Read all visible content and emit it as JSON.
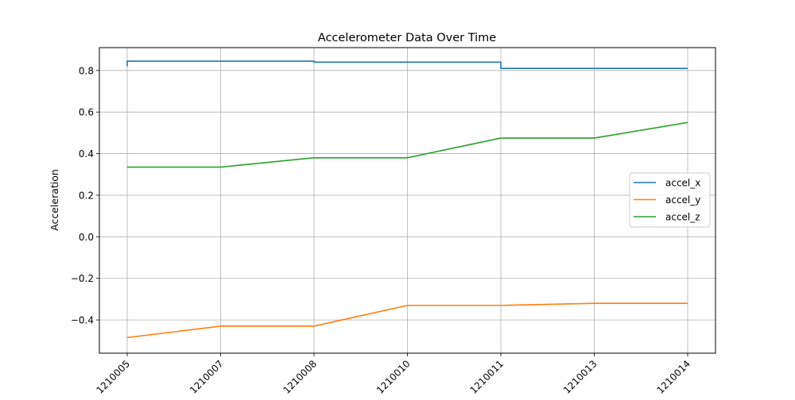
{
  "chart_data": {
    "type": "line",
    "title": "Accelerometer Data Over Time",
    "xlabel": "",
    "ylabel": "Acceleration",
    "categories": [
      "1210005",
      "1210007",
      "1210008",
      "1210010",
      "1210011",
      "1210013",
      "1210014"
    ],
    "tick_labels_shown": [
      "1210005",
      "1210007",
      "1210008",
      "1210010",
      "1210011",
      "1210013",
      "1210014"
    ],
    "x_tick_rotation_deg": 45,
    "yticks": [
      -0.4,
      -0.2,
      0.0,
      0.2,
      0.4,
      0.6,
      0.8
    ],
    "ytick_labels": [
      "−0.4",
      "−0.2",
      "0.0",
      "0.2",
      "0.4",
      "0.6",
      "0.8"
    ],
    "ylim": [
      -0.56,
      0.91
    ],
    "grid": true,
    "legend_position": "center-right",
    "series": [
      {
        "name": "accel_x",
        "color": "#1f77b4",
        "step": true,
        "points": [
          [
            0,
            0.82
          ],
          [
            0,
            0.845
          ],
          [
            2,
            0.845
          ],
          [
            2,
            0.84
          ],
          [
            4,
            0.84
          ],
          [
            4,
            0.81
          ],
          [
            6,
            0.81
          ]
        ]
      },
      {
        "name": "accel_y",
        "color": "#ff7f0e",
        "step": false,
        "points": [
          [
            0,
            -0.485
          ],
          [
            1,
            -0.43
          ],
          [
            2,
            -0.43
          ],
          [
            3,
            -0.33
          ],
          [
            4,
            -0.33
          ],
          [
            5,
            -0.32
          ],
          [
            6,
            -0.32
          ]
        ]
      },
      {
        "name": "accel_z",
        "color": "#2ca02c",
        "step": false,
        "points": [
          [
            0,
            0.335
          ],
          [
            1,
            0.335
          ],
          [
            2,
            0.38
          ],
          [
            3,
            0.38
          ],
          [
            4,
            0.475
          ],
          [
            5,
            0.475
          ],
          [
            6,
            0.55
          ]
        ]
      }
    ]
  }
}
